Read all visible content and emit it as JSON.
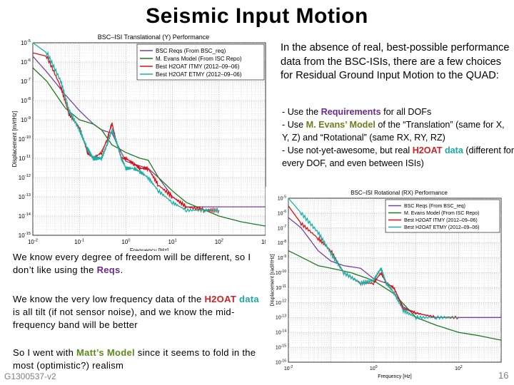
{
  "title": "Seismic  Input Motion",
  "intro": "In the absence of real, best-possible performance data from the BSC-ISIs, there are a few choices for Residual Ground Input Motion to the QUAD:",
  "bullets": [
    {
      "pre": "- Use the ",
      "hl": "Requirements",
      "post": " for all DOFs"
    },
    {
      "pre": "- Use ",
      "hl": "M. Evans’ Model",
      "post": " of the “Translation” (same for X, Y, Z) and “Rotational” (same RX, RY, RZ)"
    },
    {
      "pre": "- Use not-yet-awesome, but real ",
      "hl": "H2OAT",
      "hl2": "data",
      "post": " (different for every DOF, and even between ISIs)"
    }
  ],
  "left_paras": [
    {
      "pre": "We know every degree of freedom will be different, so I don’t like using the ",
      "hl": "Reqs",
      "post": "."
    },
    {
      "pre": "We know the very low frequency data of the ",
      "hl": "H2OAT",
      "hl2": "data",
      "post": " is all tilt (if not sensor noise), and we know the mid-frequency band will be better"
    },
    {
      "pre": "So I went with ",
      "hl": "Matt’s Model",
      "post": " since it seems to fold in the most (optimistic?) realism"
    }
  ],
  "footer": "G1300537-v2",
  "page_number": "16",
  "colors": {
    "reqs": "#7a3fa0",
    "model": "#1f7a1f",
    "itmy": "#e01010",
    "etmy": "#19b0a8"
  },
  "chart_data": [
    {
      "type": "line",
      "title": "BSC–ISI Translational (Y) Performance",
      "xlabel": "Frequency [Hz]",
      "ylabel": "Displacement [m/rtHz]",
      "xscale": "log",
      "yscale": "log",
      "xlim": [
        0.01,
        1000
      ],
      "ylim": [
        1e-15,
        1e-05
      ],
      "xticks": [
        "10^-2",
        "10^-1",
        "10^0",
        "10^1",
        "10^2",
        "10^3"
      ],
      "yticks": [
        "10^-15",
        "10^-14",
        "10^-13",
        "10^-12",
        "10^-11",
        "10^-10",
        "10^-9",
        "10^-8",
        "10^-7",
        "10^-6",
        "10^-5"
      ],
      "grid": true,
      "legend": "top-right",
      "series": [
        {
          "name": "BSC Reqs (From BSC_req)",
          "color": "#7a3fa0",
          "x": [
            0.01,
            0.02,
            0.05,
            0.1,
            0.2,
            0.3,
            0.5,
            0.8,
            1,
            2,
            3,
            5,
            10,
            20,
            40,
            100,
            300,
            1000
          ],
          "y": [
            2e-06,
            3e-07,
            2e-08,
            3e-09,
            6e-10,
            3e-10,
            2e-10,
            2e-11,
            7e-12,
            4e-12,
            3e-12,
            1e-12,
            1e-13,
            3e-14,
            3e-14,
            3e-14,
            3e-14,
            3e-14
          ]
        },
        {
          "name": "M. Evans Model (From ISC Repo)",
          "color": "#1f7a1f",
          "x": [
            0.01,
            0.02,
            0.05,
            0.1,
            0.2,
            0.3,
            0.5,
            1,
            2,
            3,
            5,
            10,
            20,
            50,
            100,
            300,
            1000
          ],
          "y": [
            5e-07,
            1e-07,
            4e-09,
            1e-09,
            6e-10,
            3e-10,
            5e-11,
            2e-11,
            1e-11,
            8e-12,
            1e-12,
            2e-13,
            5e-14,
            2e-14,
            1e-14,
            5e-15,
            3e-15
          ]
        },
        {
          "name": "Best H2OAT ITMY (2012–09–06)",
          "color": "#e01010",
          "x": [
            0.01,
            0.02,
            0.04,
            0.06,
            0.1,
            0.15,
            0.2,
            0.3,
            0.4,
            0.5,
            0.6,
            0.8,
            1,
            1.5,
            2,
            3,
            5,
            10,
            20,
            50,
            100
          ],
          "y": [
            3e-06,
            2e-06,
            5e-08,
            2e-09,
            4e-10,
            2e-11,
            1e-11,
            2e-11,
            1e-10,
            7e-10,
            1e-10,
            1e-11,
            1e-11,
            5e-12,
            3e-12,
            3e-12,
            4e-13,
            1e-13,
            3e-14,
            2e-14,
            2e-14
          ]
        },
        {
          "name": "Best H2OAT ETMY (2012–09–06)",
          "color": "#19b0a8",
          "x": [
            0.01,
            0.02,
            0.04,
            0.06,
            0.1,
            0.15,
            0.2,
            0.3,
            0.4,
            0.5,
            0.6,
            0.8,
            1,
            1.5,
            2,
            3,
            5,
            10,
            20,
            50,
            100
          ],
          "y": [
            1e-05,
            3e-06,
            1e-07,
            3e-09,
            3e-10,
            3e-11,
            1e-11,
            1e-11,
            6e-11,
            3e-10,
            1e-10,
            1e-11,
            3e-12,
            3e-12,
            2e-12,
            1e-12,
            2e-13,
            5e-14,
            2e-14,
            2e-14,
            2e-14
          ]
        }
      ]
    },
    {
      "type": "line",
      "title": "BSC–ISI Rotational (RX) Performance",
      "xlabel": "Frequency [Hz]",
      "ylabel": "Displacement [rad/rtHz]",
      "xscale": "log",
      "yscale": "log",
      "xlim": [
        0.01,
        1000
      ],
      "ylim": [
        1e-16,
        1e-05
      ],
      "xticks": [
        "10^-2",
        "10^0",
        "10^2"
      ],
      "yticks": [
        "10^-16",
        "10^-15",
        "10^-14",
        "10^-13",
        "10^-12",
        "10^-11",
        "10^-10",
        "10^-9",
        "10^-8",
        "10^-7",
        "10^-6",
        "10^-5"
      ],
      "grid": true,
      "legend": "top-right",
      "series": [
        {
          "name": "BSC Reqs (From BSC_req)",
          "color": "#7a3fa0",
          "x": [
            0.01,
            0.02,
            0.05,
            0.1,
            0.2,
            0.5,
            1,
            2,
            3,
            5,
            10,
            30,
            100,
            1000
          ],
          "y": [
            5e-07,
            1e-07,
            3e-09,
            6e-10,
            3e-10,
            2e-10,
            4e-11,
            2e-11,
            1e-11,
            5e-13,
            2e-13,
            1e-13,
            1e-13,
            1e-13
          ]
        },
        {
          "name": "M. Evans Model (From ISC Repo)",
          "color": "#1f7a1f",
          "x": [
            0.01,
            0.05,
            0.1,
            0.3,
            1,
            3,
            10,
            30,
            100,
            300,
            1000
          ],
          "y": [
            3e-09,
            3e-10,
            2e-10,
            1e-10,
            3e-11,
            4e-12,
            1e-13,
            3e-14,
            1e-14,
            6e-15,
            3e-15
          ]
        },
        {
          "name": "Best H2OAT ITMY (2012–09–06)",
          "color": "#e01010",
          "x": [
            0.01,
            0.02,
            0.05,
            0.1,
            0.2,
            0.5,
            1,
            1.5,
            2,
            3,
            5,
            10,
            30,
            100
          ],
          "y": [
            3e-06,
            2e-07,
            2e-08,
            3e-09,
            1e-10,
            2e-11,
            2e-11,
            1e-10,
            2e-11,
            1e-11,
            4e-13,
            2e-13,
            1e-13,
            1e-13
          ]
        },
        {
          "name": "Best H2OAT ETMY (2012–09–06)",
          "color": "#19b0a8",
          "x": [
            0.01,
            0.02,
            0.05,
            0.1,
            0.2,
            0.5,
            1,
            1.5,
            2,
            3,
            5,
            10,
            30,
            100
          ],
          "y": [
            1e-05,
            1e-06,
            5e-08,
            2e-09,
            1e-10,
            2e-11,
            3e-11,
            2e-10,
            2e-11,
            5e-12,
            3e-13,
            1e-13,
            1e-13,
            1e-13
          ]
        }
      ]
    }
  ]
}
